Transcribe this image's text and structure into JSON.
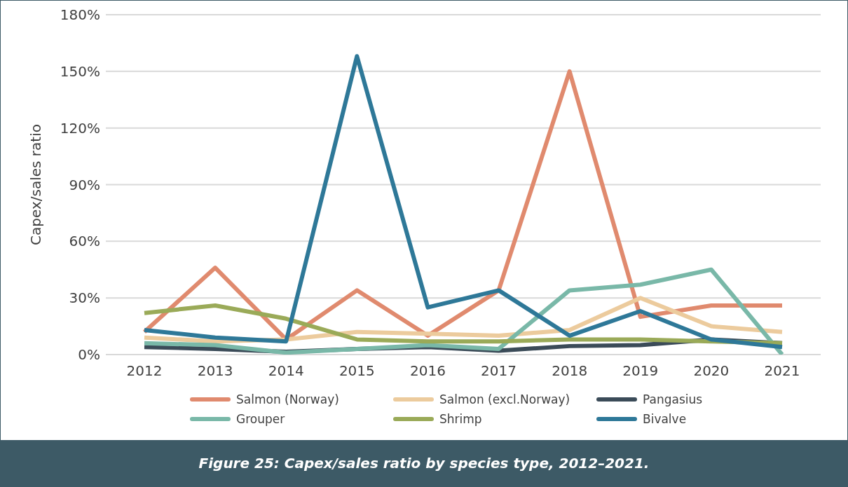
{
  "chart_data": {
    "type": "line",
    "categories": [
      "2012",
      "2013",
      "2014",
      "2015",
      "2016",
      "2017",
      "2018",
      "2019",
      "2020",
      "2021"
    ],
    "ylabel": "Capex/sales ratio",
    "ylim": [
      0,
      180
    ],
    "yticks": [
      {
        "value": 0,
        "label": "0%"
      },
      {
        "value": 30,
        "label": "30%"
      },
      {
        "value": 60,
        "label": "60%"
      },
      {
        "value": 90,
        "label": "90%"
      },
      {
        "value": 120,
        "label": "120%"
      },
      {
        "value": 150,
        "label": "150%"
      },
      {
        "value": 180,
        "label": "180%"
      }
    ],
    "grid": "y",
    "legend": "bottom",
    "marker": "none",
    "line_style": "solid",
    "annotations": [
      "Figure 25: Capex/sales ratio by species type, 2012–2021."
    ],
    "series": [
      {
        "name": "Salmon (Norway)",
        "color": "#e08a6e",
        "values": [
          12,
          46,
          8,
          34,
          10,
          34,
          150,
          20,
          26,
          26
        ]
      },
      {
        "name": "Salmon (excl.Norway)",
        "color": "#eccb9d",
        "values": [
          9,
          7,
          8,
          12,
          11,
          10,
          13,
          30,
          15,
          12
        ]
      },
      {
        "name": "Pangasius",
        "color": "#3b4b58",
        "values": [
          4,
          3,
          1.5,
          3,
          4,
          2,
          4.5,
          5,
          8,
          6
        ]
      },
      {
        "name": "Grouper",
        "color": "#79b8a8",
        "values": [
          6,
          5,
          1,
          3,
          5,
          3,
          34,
          37,
          45,
          0
        ]
      },
      {
        "name": "Shrimp",
        "color": "#9aaa58",
        "values": [
          22,
          26,
          19,
          8,
          7,
          7,
          8,
          8,
          7,
          6
        ]
      },
      {
        "name": "Bivalve",
        "color": "#2e7898",
        "values": [
          13,
          9,
          7,
          158,
          25,
          34,
          10,
          23,
          8,
          4
        ]
      }
    ]
  }
}
